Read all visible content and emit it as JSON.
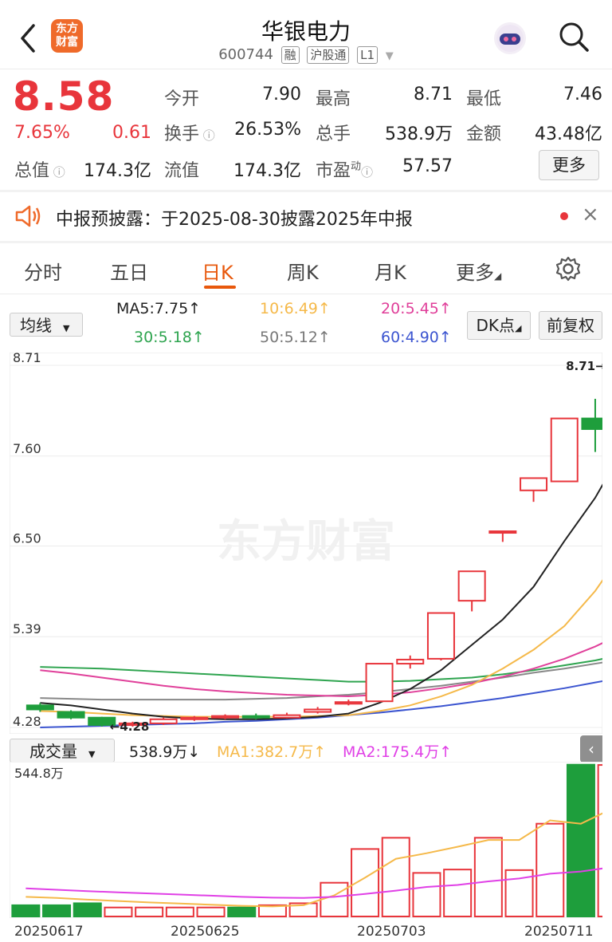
{
  "header": {
    "title": "华银电力",
    "code": "600744",
    "tags": [
      "融",
      "沪股通",
      "L1"
    ],
    "logo_text": "东方财富"
  },
  "quote": {
    "price": "8.58",
    "change_pct": "7.65%",
    "change": "0.61",
    "fields": {
      "open_label": "今开",
      "open": "7.90",
      "high_label": "最高",
      "high": "8.71",
      "low_label": "最低",
      "low": "7.46",
      "turnover_label": "换手",
      "turnover": "26.53%",
      "volume_label": "总手",
      "volume": "538.9万",
      "amount_label": "金额",
      "amount": "43.48亿",
      "mktcap_label": "总值",
      "mktcap": "174.3亿",
      "float_label": "流值",
      "float": "174.3亿",
      "pe_label": "市盈",
      "pe_sup": "动",
      "pe": "57.57"
    },
    "more_label": "更多"
  },
  "notice": {
    "text": "中报预披露：于2025-08-30披露2025年中报"
  },
  "tabs": [
    "分时",
    "五日",
    "日K",
    "周K",
    "月K",
    "更多"
  ],
  "active_tab": "日K",
  "ma_bar": {
    "selector": "均线",
    "ma5": "MA5:7.75↑",
    "ma10": "10:6.49↑",
    "ma20": "20:5.45↑",
    "ma30": "30:5.18↑",
    "ma50": "50:5.12↑",
    "ma60": "60:4.90↑",
    "dk_label": "DK点",
    "adj_label": "前复权"
  },
  "colors": {
    "up": "#e8353b",
    "down": "#1e9e3c",
    "ma5": "#222222",
    "ma10": "#f5b94a",
    "ma20": "#e0409a",
    "ma30": "#2ea44f",
    "ma50": "#888888",
    "ma60": "#3c55d0",
    "vma2": "#e040e6"
  },
  "chart_data": [
    {
      "type": "candlestick",
      "y_ticks": [
        "8.71",
        "7.60",
        "6.50",
        "5.39",
        "4.28"
      ],
      "ylim": [
        4.28,
        8.71
      ],
      "high_marker": "8.71→",
      "low_marker": "4.28",
      "signal": "B",
      "watermark": "东方财富",
      "candles": [
        {
          "o": 4.55,
          "c": 4.5,
          "h": 4.58,
          "l": 4.47
        },
        {
          "o": 4.47,
          "c": 4.4,
          "h": 4.49,
          "l": 4.38
        },
        {
          "o": 4.4,
          "c": 4.31,
          "h": 4.41,
          "l": 4.29
        },
        {
          "o": 4.31,
          "c": 4.33,
          "h": 4.35,
          "l": 4.29
        },
        {
          "o": 4.33,
          "c": 4.38,
          "h": 4.4,
          "l": 4.31
        },
        {
          "o": 4.38,
          "c": 4.4,
          "h": 4.42,
          "l": 4.36
        },
        {
          "o": 4.4,
          "c": 4.42,
          "h": 4.44,
          "l": 4.38
        },
        {
          "o": 4.42,
          "c": 4.4,
          "h": 4.45,
          "l": 4.38
        },
        {
          "o": 4.4,
          "c": 4.43,
          "h": 4.46,
          "l": 4.39
        },
        {
          "o": 4.47,
          "c": 4.5,
          "h": 4.53,
          "l": 4.45
        },
        {
          "o": 4.57,
          "c": 4.59,
          "h": 4.62,
          "l": 4.55
        },
        {
          "o": 4.6,
          "c": 5.06,
          "h": 5.06,
          "l": 4.6
        },
        {
          "o": 5.06,
          "c": 5.11,
          "h": 5.16,
          "l": 5.0
        },
        {
          "o": 5.12,
          "c": 5.68,
          "h": 5.68,
          "l": 5.1
        },
        {
          "o": 5.83,
          "c": 6.19,
          "h": 6.19,
          "l": 5.7
        },
        {
          "o": 6.68,
          "c": 6.68,
          "h": 6.68,
          "l": 6.55
        },
        {
          "o": 7.18,
          "c": 7.33,
          "h": 7.33,
          "l": 7.04
        },
        {
          "o": 7.29,
          "c": 8.06,
          "h": 8.06,
          "l": 7.29
        },
        {
          "o": 8.06,
          "c": 7.93,
          "h": 8.3,
          "l": 7.65
        },
        {
          "o": 7.9,
          "c": 8.58,
          "h": 8.71,
          "l": 7.46
        }
      ],
      "ma5": [
        4.58,
        4.55,
        4.5,
        4.45,
        4.41,
        4.39,
        4.38,
        4.38,
        4.39,
        4.41,
        4.45,
        4.58,
        4.75,
        4.98,
        5.29,
        5.6,
        6.0,
        6.56,
        7.09,
        7.75
      ],
      "ma10": [
        4.48,
        4.47,
        4.45,
        4.43,
        4.42,
        4.41,
        4.41,
        4.41,
        4.41,
        4.42,
        4.43,
        4.48,
        4.55,
        4.66,
        4.8,
        5.0,
        5.23,
        5.52,
        5.95,
        6.49
      ],
      "ma20": [
        4.98,
        4.94,
        4.89,
        4.84,
        4.79,
        4.75,
        4.72,
        4.7,
        4.68,
        4.67,
        4.66,
        4.68,
        4.71,
        4.76,
        4.82,
        4.9,
        5.0,
        5.12,
        5.27,
        5.45
      ],
      "ma30": [
        5.02,
        5.01,
        5.0,
        4.98,
        4.96,
        4.94,
        4.92,
        4.9,
        4.88,
        4.86,
        4.84,
        4.84,
        4.85,
        4.87,
        4.89,
        4.93,
        4.98,
        5.04,
        5.1,
        5.18
      ],
      "ma50": [
        4.64,
        4.63,
        4.62,
        4.62,
        4.62,
        4.62,
        4.62,
        4.63,
        4.64,
        4.66,
        4.68,
        4.71,
        4.75,
        4.79,
        4.84,
        4.89,
        4.95,
        5.0,
        5.06,
        5.12
      ],
      "ma60": [
        4.28,
        4.29,
        4.3,
        4.31,
        4.32,
        4.33,
        4.35,
        4.36,
        4.38,
        4.4,
        4.43,
        4.46,
        4.5,
        4.54,
        4.59,
        4.64,
        4.7,
        4.76,
        4.83,
        4.9
      ]
    },
    {
      "type": "bar",
      "label": "成交量",
      "volume_label": "538.9万↓",
      "ma1_label": "MA1:382.7万↑",
      "ma2_label": "MA2:175.4万↑",
      "top_tick": "544.8万",
      "x_labels": [
        "20250617",
        "20250625",
        "20250703",
        "20250711"
      ],
      "values": [
        40,
        40,
        47,
        32,
        32,
        32,
        32,
        32,
        40,
        47,
        120,
        240,
        280,
        155,
        167,
        280,
        165,
        330,
        540,
        538.9
      ],
      "up": [
        false,
        false,
        false,
        true,
        true,
        true,
        true,
        false,
        true,
        true,
        true,
        true,
        true,
        true,
        true,
        true,
        true,
        true,
        false,
        true
      ],
      "ma1": [
        70,
        66,
        60,
        55,
        50,
        46,
        42,
        38,
        36,
        40,
        75,
        138,
        205,
        225,
        248,
        272,
        272,
        342,
        330,
        382.7
      ],
      "ma2": [
        100,
        95,
        90,
        86,
        82,
        78,
        74,
        70,
        67,
        66,
        70,
        80,
        92,
        105,
        112,
        125,
        135,
        152,
        160,
        175.4
      ],
      "ylim": [
        0,
        544.8
      ]
    }
  ]
}
